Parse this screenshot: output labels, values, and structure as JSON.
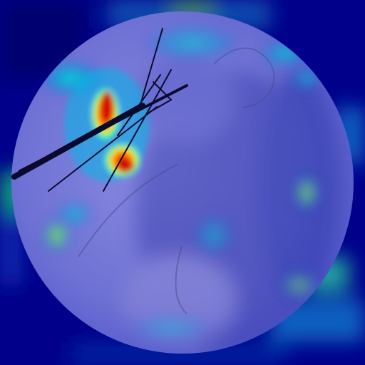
{
  "image": {
    "kind": "fluoroscopy-with-heatmap-overlay",
    "description_icon": "attention-heatmap",
    "colors": {
      "background": "#00008a",
      "heat_low": "#0010b0",
      "heat_mid": "#00c8e0",
      "heat_high": "#ffe000",
      "heat_peak": "#d40000",
      "xray_field": "#9a9ae8",
      "instrument": "#0a0a30"
    }
  }
}
